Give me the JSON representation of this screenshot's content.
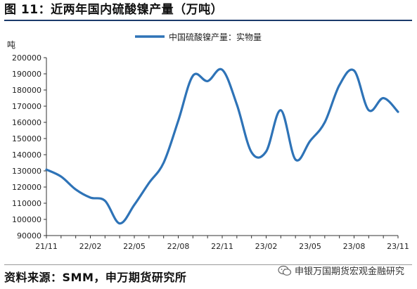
{
  "figure": {
    "title": "图 11：近两年国内硫酸镍产量（万吨）",
    "source": "资料来源：SMM，申万期货研究所",
    "watermark": "申银万国期货宏观金融研究"
  },
  "colors": {
    "line": "#2e73b7",
    "axis": "#333333",
    "rule": "#1b3a6b"
  },
  "chart_data": {
    "type": "line",
    "title": "",
    "xlabel": "",
    "ylabel": "吨",
    "ylim": [
      90000,
      200000
    ],
    "yticks": [
      90000,
      100000,
      110000,
      120000,
      130000,
      140000,
      150000,
      160000,
      170000,
      180000,
      190000,
      200000
    ],
    "grid": false,
    "legend_position": "top-center",
    "x_tick_labels": [
      "21/11",
      "22/02",
      "22/05",
      "22/08",
      "22/11",
      "23/02",
      "23/05",
      "23/08",
      "23/11"
    ],
    "x": [
      "21/11",
      "21/12",
      "22/01",
      "22/02",
      "22/03",
      "22/04",
      "22/05",
      "22/06",
      "22/07",
      "22/08",
      "22/09",
      "22/10",
      "22/11",
      "22/12",
      "23/01",
      "23/02",
      "23/03",
      "23/04",
      "23/05",
      "23/06",
      "23/07",
      "23/08",
      "23/09",
      "23/10",
      "23/11"
    ],
    "series": [
      {
        "name": "中国硫酸镍产量：实物量",
        "values": [
          130800,
          126500,
          118500,
          113500,
          111500,
          97500,
          109000,
          122500,
          135000,
          161000,
          188800,
          185500,
          192500,
          171000,
          141500,
          142000,
          167500,
          137000,
          148500,
          160000,
          183000,
          192000,
          167500,
          175000,
          166500
        ]
      }
    ]
  }
}
